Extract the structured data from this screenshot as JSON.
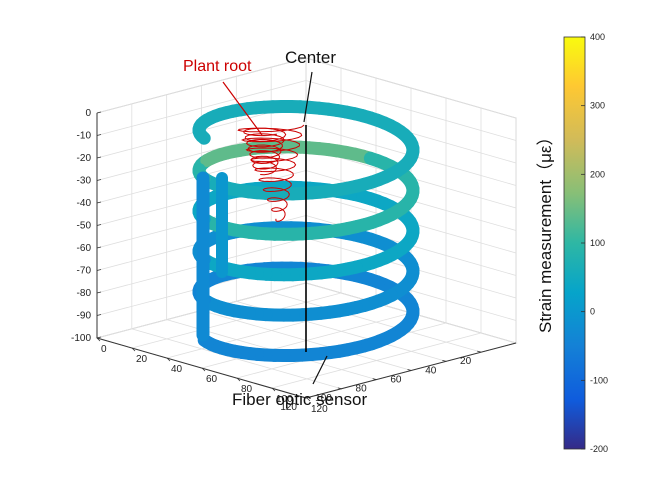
{
  "chart_data": {
    "type": "3d-scatter-colormap",
    "annotations": {
      "plant_root": "Plant root",
      "center": "Center",
      "sensor": "Fiber optic sensor"
    },
    "z_axis": {
      "ticks": [
        "0",
        "-10",
        "-20",
        "-30",
        "-40",
        "-50",
        "-60",
        "-70",
        "-80",
        "-90",
        "-100"
      ]
    },
    "x_axis": {
      "ticks": [
        "20",
        "40",
        "60",
        "80",
        "100",
        "120"
      ]
    },
    "y_axis": {
      "ticks": [
        "0",
        "20",
        "40",
        "60",
        "80",
        "100",
        "120"
      ]
    },
    "colorbar": {
      "label": "Strain measurement（με）",
      "ticks": [
        "400",
        "300",
        "200",
        "100",
        "0",
        "-100",
        "-200"
      ],
      "range": [
        -200,
        400
      ],
      "colormap": "parula"
    },
    "helix": {
      "center": [
        60,
        60
      ],
      "radius": 45,
      "turns": 5,
      "z_top": -10,
      "z_bottom": -100,
      "strain_by_turn": [
        60,
        90,
        40,
        10,
        -40
      ]
    },
    "root": {
      "color": "#cc0000",
      "z_top": -5,
      "z_bottom": -55
    },
    "colors": {
      "root": "#cc0000",
      "axis": "#333333",
      "grid": "#d9d9d9"
    }
  }
}
